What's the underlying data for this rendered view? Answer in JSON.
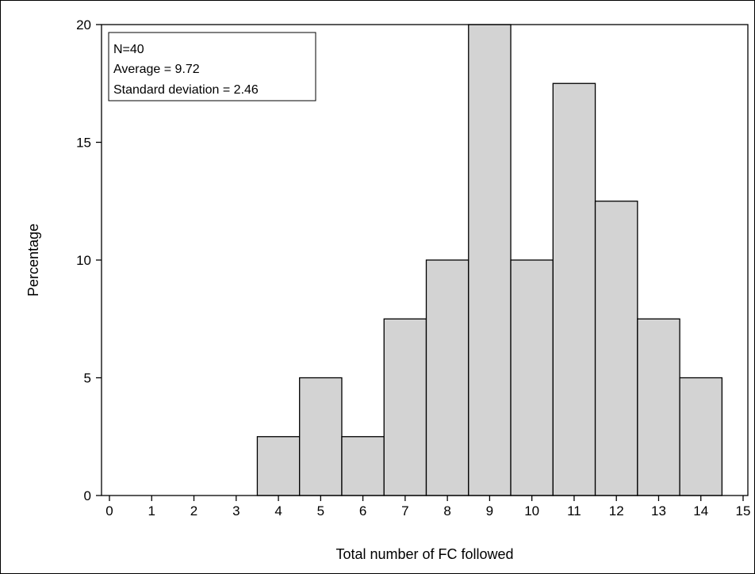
{
  "chart_data": {
    "type": "bar",
    "subtype": "histogram",
    "categories": [
      "0",
      "1",
      "2",
      "3",
      "4",
      "5",
      "6",
      "7",
      "8",
      "9",
      "10",
      "11",
      "12",
      "13",
      "14",
      "15"
    ],
    "values": [
      0,
      0,
      0,
      0,
      2.5,
      5,
      2.5,
      7.5,
      10,
      20,
      10,
      17.5,
      12.5,
      7.5,
      5,
      0
    ],
    "xlabel": "Total number of FC followed",
    "ylabel": "Percentage",
    "xlim": [
      0,
      15
    ],
    "ylim": [
      0,
      20
    ],
    "x_ticks": [
      0,
      1,
      2,
      3,
      4,
      5,
      6,
      7,
      8,
      9,
      10,
      11,
      12,
      13,
      14,
      15
    ],
    "y_ticks": [
      0,
      5,
      10,
      15,
      20
    ],
    "grid": false,
    "bar_color": "#d3d3d3",
    "bar_edge_color": "#000000",
    "inset_box": {
      "position": "top-left",
      "lines": [
        "N=40",
        "Average = 9.72",
        "Standard deviation = 2.46"
      ]
    }
  }
}
